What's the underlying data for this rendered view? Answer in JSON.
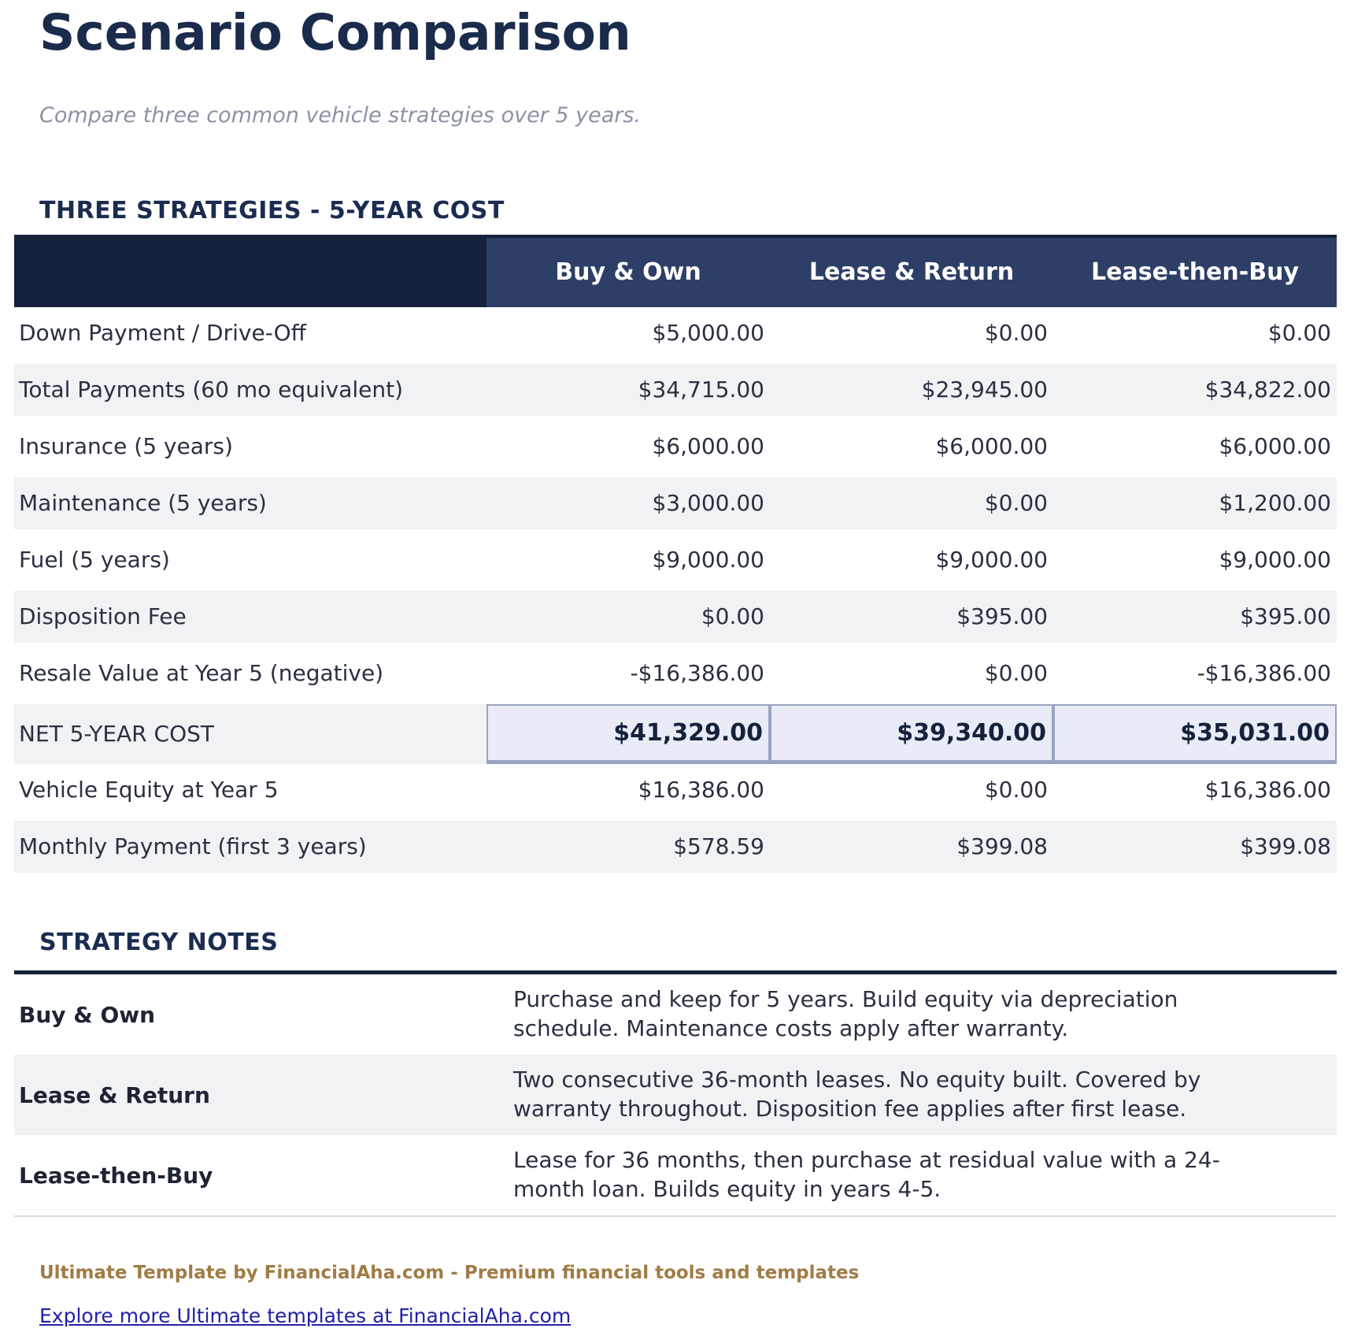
{
  "page": {
    "title": "Scenario Comparison",
    "subtitle": "Compare three common vehicle strategies over 5 years."
  },
  "comparison": {
    "section_title": "THREE STRATEGIES - 5-YEAR COST",
    "columns": [
      "Buy & Own",
      "Lease & Return",
      "Lease-then-Buy"
    ],
    "rows": [
      {
        "label": "Down Payment / Drive-Off",
        "values": [
          "$5,000.00",
          "$0.00",
          "$0.00"
        ]
      },
      {
        "label": "Total Payments (60 mo equivalent)",
        "values": [
          "$34,715.00",
          "$23,945.00",
          "$34,822.00"
        ]
      },
      {
        "label": "Insurance (5 years)",
        "values": [
          "$6,000.00",
          "$6,000.00",
          "$6,000.00"
        ]
      },
      {
        "label": "Maintenance (5 years)",
        "values": [
          "$3,000.00",
          "$0.00",
          "$1,200.00"
        ]
      },
      {
        "label": "Fuel (5 years)",
        "values": [
          "$9,000.00",
          "$9,000.00",
          "$9,000.00"
        ]
      },
      {
        "label": "Disposition Fee",
        "values": [
          "$0.00",
          "$395.00",
          "$395.00"
        ]
      },
      {
        "label": "Resale Value at Year 5 (negative)",
        "values": [
          "-$16,386.00",
          "$0.00",
          "-$16,386.00"
        ]
      },
      {
        "label": "NET 5-YEAR COST",
        "values": [
          "$41,329.00",
          "$39,340.00",
          "$35,031.00"
        ],
        "highlight": true
      },
      {
        "label": "Vehicle Equity at Year 5",
        "values": [
          "$16,386.00",
          "$0.00",
          "$16,386.00"
        ]
      },
      {
        "label": "Monthly Payment (first 3 years)",
        "values": [
          "$578.59",
          "$399.08",
          "$399.08"
        ]
      }
    ]
  },
  "notes": {
    "section_title": "STRATEGY NOTES",
    "items": [
      {
        "label": "Buy & Own",
        "text": "Purchase and keep for 5 years. Build equity via depreciation schedule. Maintenance costs apply after warranty."
      },
      {
        "label": "Lease & Return",
        "text": "Two consecutive 36-month leases. No equity built. Covered by warranty throughout. Disposition fee applies after first lease."
      },
      {
        "label": "Lease-then-Buy",
        "text": "Lease for 36 months, then purchase at residual value with a 24-month loan. Builds equity in years 4-5."
      }
    ]
  },
  "footer": {
    "branding": "Ultimate Template by FinancialAha.com - Premium financial tools and templates",
    "link": "Explore more Ultimate templates at FinancialAha.com"
  },
  "colors": {
    "dark_navy": "#16213c",
    "header_blue": "#2d3f66",
    "title_navy": "#1a2b4c",
    "row_alt_gray": "#f1f2f4",
    "net_highlight_bg": "#e9ecf6",
    "net_highlight_border": "#9aa3c0",
    "subtitle_gray": "#8b93a3",
    "brand_gold": "#a07c45",
    "link_blue": "#2121a8"
  }
}
